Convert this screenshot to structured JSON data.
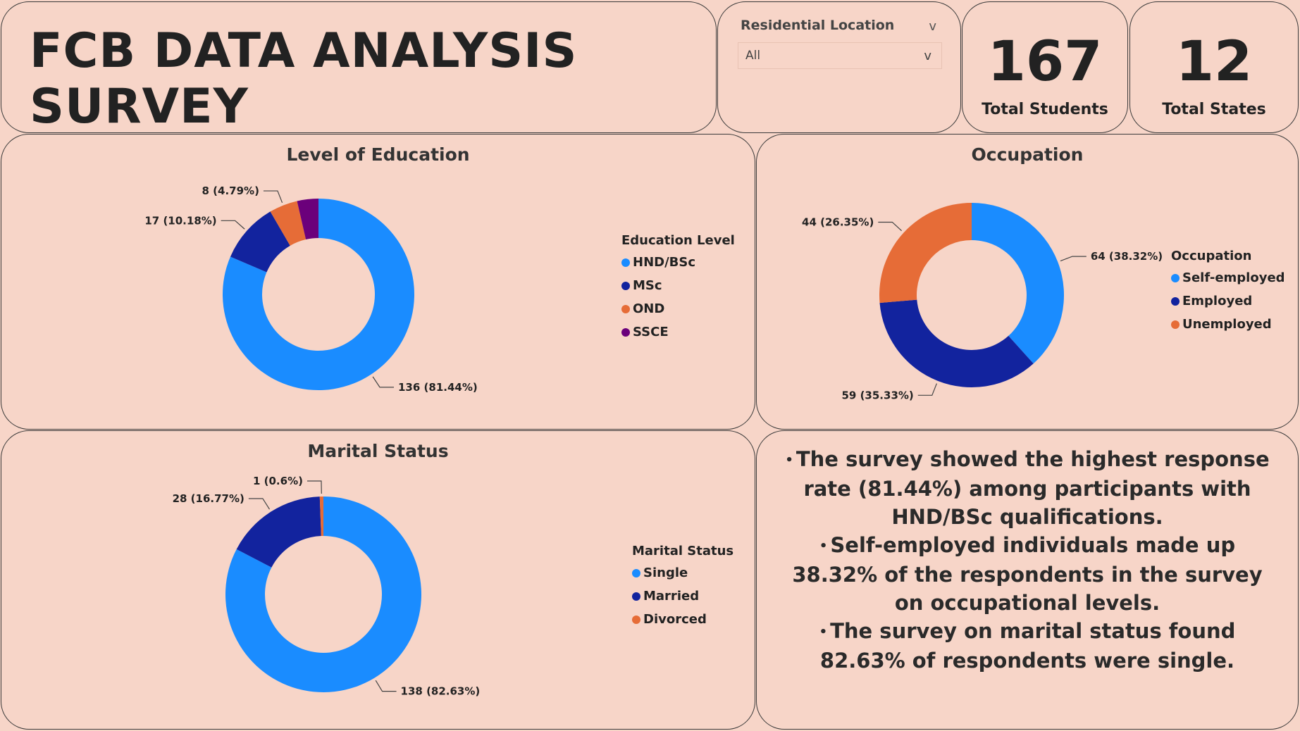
{
  "header": {
    "title": "FCB DATA ANALYSIS SURVEY"
  },
  "filter": {
    "label": "Residential Location",
    "value": "All",
    "chevron": "v"
  },
  "kpis": [
    {
      "value": "167",
      "label": "Total Students"
    },
    {
      "value": "12",
      "label": "Total States"
    }
  ],
  "colors": {
    "light_blue": "#1a8cff",
    "dark_blue": "#12239e",
    "orange": "#e66c37",
    "purple": "#6b007b",
    "background": "#f7d5c8"
  },
  "chart_data": [
    {
      "type": "pie",
      "title": "Level of Education",
      "legend_title": "Education Level",
      "donut": true,
      "slices": [
        {
          "label": "HND/BSc",
          "value": 136,
          "pct": "81.44%",
          "data_label": "136 (81.44%)",
          "color": "#1a8cff"
        },
        {
          "label": "MSc",
          "value": 17,
          "pct": "10.18%",
          "data_label": "17 (10.18%)",
          "color": "#12239e"
        },
        {
          "label": "OND",
          "value": 8,
          "pct": "4.79%",
          "data_label": "8 (4.79%)",
          "color": "#e66c37"
        },
        {
          "label": "SSCE",
          "value": 6,
          "pct": "3.59%",
          "data_label": "",
          "color": "#6b007b"
        }
      ],
      "legend_position": "right"
    },
    {
      "type": "pie",
      "title": "Occupation",
      "legend_title": "Occupation",
      "donut": true,
      "slices": [
        {
          "label": "Self-employed",
          "value": 64,
          "pct": "38.32%",
          "data_label": "64 (38.32%)",
          "color": "#1a8cff"
        },
        {
          "label": "Employed",
          "value": 59,
          "pct": "35.33%",
          "data_label": "59 (35.33%)",
          "color": "#12239e"
        },
        {
          "label": "Unemployed",
          "value": 44,
          "pct": "26.35%",
          "data_label": "44 (26.35%)",
          "color": "#e66c37"
        }
      ],
      "legend_position": "right"
    },
    {
      "type": "pie",
      "title": "Marital Status",
      "legend_title": "Marital Status",
      "donut": true,
      "slices": [
        {
          "label": "Single",
          "value": 138,
          "pct": "82.63%",
          "data_label": "138 (82.63%)",
          "color": "#1a8cff"
        },
        {
          "label": "Married",
          "value": 28,
          "pct": "16.77%",
          "data_label": "28 (16.77%)",
          "color": "#12239e"
        },
        {
          "label": "Divorced",
          "value": 1,
          "pct": "0.6%",
          "data_label": "1 (0.6%)",
          "color": "#e66c37"
        }
      ],
      "legend_position": "right"
    }
  ],
  "insights": [
    "The survey showed the highest response rate (81.44%) among participants with HND/BSc qualifications.",
    "Self-employed individuals made up 38.32% of the respondents in the survey on occupational levels.",
    "The survey on marital status found 82.63% of respondents were single."
  ]
}
